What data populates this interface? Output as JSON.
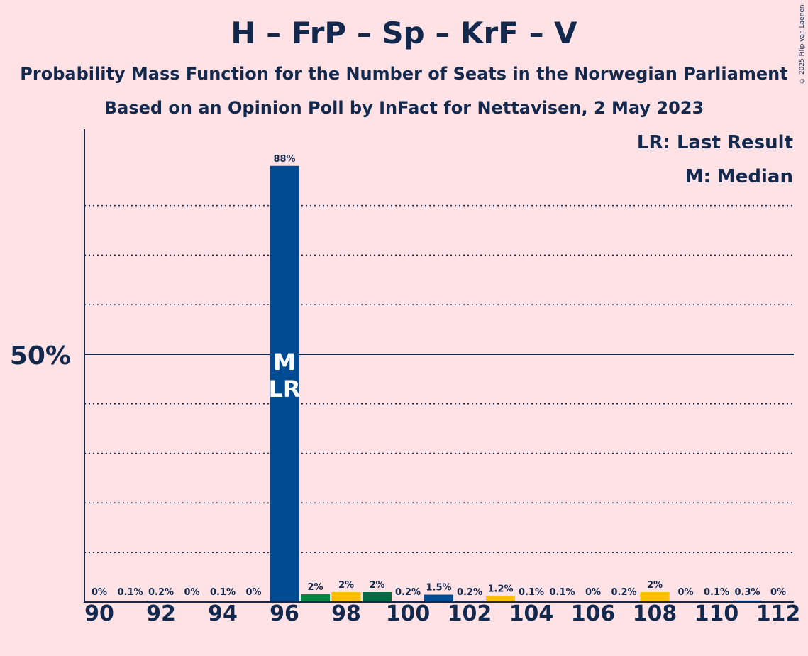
{
  "title": "H – FrP – Sp – KrF – V",
  "subtitle_line1": "Probability Mass Function for the Number of Seats in the Norwegian Parliament",
  "subtitle_line2": "Based on an Opinion Poll by InFact for Nettavisen, 2 May 2023",
  "copyright": "© 2025 Filip van Laenen",
  "legend": {
    "last_result": "LR: Last Result",
    "median": "M: Median"
  },
  "colors": {
    "background": "#FFE2E6",
    "text": "#12294D",
    "H": "#004B91",
    "KrF": "#FFBE00",
    "V": "#006A43",
    "Sp": "#008542",
    "FrP": "#024C93"
  },
  "chart_data": {
    "type": "bar",
    "x": [
      90,
      91,
      92,
      93,
      94,
      95,
      96,
      97,
      98,
      99,
      100,
      101,
      102,
      103,
      104,
      105,
      106,
      107,
      108,
      109,
      110,
      111,
      112
    ],
    "values": [
      0,
      0.1,
      0.2,
      0,
      0.1,
      0,
      88,
      1.6,
      2,
      2,
      0.2,
      1.5,
      0.2,
      1.2,
      0.1,
      0.1,
      0,
      0.2,
      2,
      0,
      0.1,
      0.3,
      0
    ],
    "value_labels": [
      "0%",
      "0.1%",
      "0.2%",
      "0%",
      "0.1%",
      "0%",
      "88%",
      "2%",
      "2%",
      "2%",
      "0.2%",
      "1.5%",
      "0.2%",
      "1.2%",
      "0.1%",
      "0.1%",
      "0%",
      "0.2%",
      "2%",
      "0%",
      "0.1%",
      "0.3%",
      "0%"
    ],
    "bar_colors": [
      "#004B91",
      "#004B91",
      "#004B91",
      "#004B91",
      "#004B91",
      "#004B91",
      "#004B91",
      "#008542",
      "#FFBE00",
      "#006A43",
      "#004B91",
      "#004B91",
      "#004B91",
      "#FFBE00",
      "#004B91",
      "#004B91",
      "#004B91",
      "#004B91",
      "#FFBE00",
      "#004B91",
      "#004B91",
      "#004B91",
      "#004B91"
    ],
    "x_tick_labels": [
      "90",
      "92",
      "94",
      "96",
      "98",
      "100",
      "102",
      "104",
      "106",
      "108",
      "110",
      "112"
    ],
    "x_tick_values": [
      90,
      92,
      94,
      96,
      98,
      100,
      102,
      104,
      106,
      108,
      110,
      112
    ],
    "y_tick_label": "50%",
    "y_tick_value": 50,
    "ylim": [
      0,
      96
    ],
    "dotted_gridlines": [
      10,
      20,
      30,
      40,
      60,
      70,
      80
    ],
    "median_seat": 96,
    "last_result_seat": 96,
    "bar_marker_lines": [
      "M",
      "LR"
    ]
  }
}
